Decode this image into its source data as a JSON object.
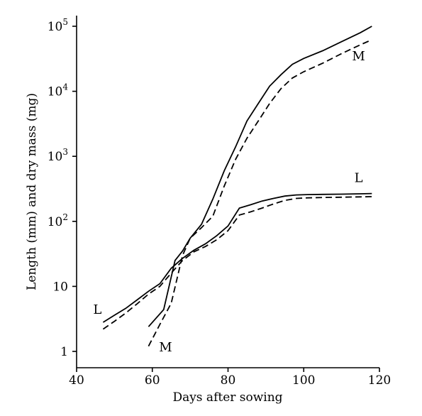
{
  "chart_data": {
    "type": "line",
    "xlabel": "Days after sowing",
    "ylabel": "Length (mm) and dry mass (mg)",
    "xlim": [
      40,
      120
    ],
    "ylim": [
      1,
      100000
    ],
    "yscale": "log",
    "grid": false,
    "x_ticks": [
      40,
      60,
      80,
      100,
      120
    ],
    "x_tick_labels": [
      "40",
      "60",
      "80",
      "100",
      "120"
    ],
    "y_ticks": [
      1,
      10,
      100,
      1000,
      10000,
      100000
    ],
    "y_tick_labels": [
      {
        "base": "1",
        "exp": ""
      },
      {
        "base": "10",
        "exp": ""
      },
      {
        "base": "10",
        "exp": "2"
      },
      {
        "base": "10",
        "exp": "3"
      },
      {
        "base": "10",
        "exp": "4"
      },
      {
        "base": "10",
        "exp": "5"
      }
    ],
    "series": [
      {
        "label": "L",
        "style": "solid",
        "color": "#000000",
        "x": [
          47,
          50,
          53,
          56,
          59,
          62,
          65,
          68,
          71,
          74,
          77,
          80,
          83,
          86,
          89,
          92,
          95,
          98,
          101,
          105,
          110,
          115,
          118
        ],
        "y": [
          2.8,
          3.6,
          4.6,
          6.2,
          8.4,
          11,
          19,
          27,
          36,
          45,
          60,
          85,
          160,
          180,
          205,
          225,
          245,
          255,
          258,
          260,
          262,
          265,
          268
        ]
      },
      {
        "label": "L",
        "style": "dashed",
        "color": "#000000",
        "x": [
          47,
          50,
          53,
          56,
          59,
          62,
          65,
          68,
          71,
          74,
          77,
          80,
          83,
          86,
          89,
          92,
          95,
          98,
          101,
          105,
          110,
          115,
          118
        ],
        "y": [
          2.2,
          2.9,
          3.9,
          5.4,
          7.6,
          10,
          16,
          25,
          34,
          41,
          52,
          72,
          125,
          140,
          160,
          185,
          210,
          225,
          230,
          233,
          235,
          238,
          240
        ]
      },
      {
        "label": "M",
        "style": "solid",
        "color": "#000000",
        "x": [
          59,
          63,
          66,
          68,
          70,
          73,
          76,
          79,
          82,
          85,
          88,
          91,
          94,
          97,
          100,
          105,
          110,
          115,
          118
        ],
        "y": [
          2.4,
          4.4,
          25,
          35,
          55,
          90,
          220,
          600,
          1400,
          3500,
          6500,
          12000,
          18000,
          26000,
          32000,
          42000,
          58000,
          80000,
          100000
        ]
      },
      {
        "label": "M",
        "style": "dashed",
        "color": "#000000",
        "x": [
          59,
          62,
          65,
          68,
          70,
          73,
          76,
          79,
          82,
          85,
          88,
          91,
          94,
          97,
          100,
          105,
          110,
          115,
          118
        ],
        "y": [
          1.2,
          2.6,
          5.5,
          30,
          55,
          80,
          120,
          350,
          900,
          1900,
          3500,
          6500,
          11000,
          16000,
          20000,
          27000,
          38000,
          52000,
          62000
        ]
      }
    ],
    "annotations": [
      {
        "text": "L",
        "x": 45.5,
        "y": 3.8
      },
      {
        "text": "L",
        "x": 114.5,
        "y": 400
      },
      {
        "text": "M",
        "x": 63.5,
        "y": 1.0
      },
      {
        "text": "M",
        "x": 114.5,
        "y": 30000
      }
    ]
  }
}
